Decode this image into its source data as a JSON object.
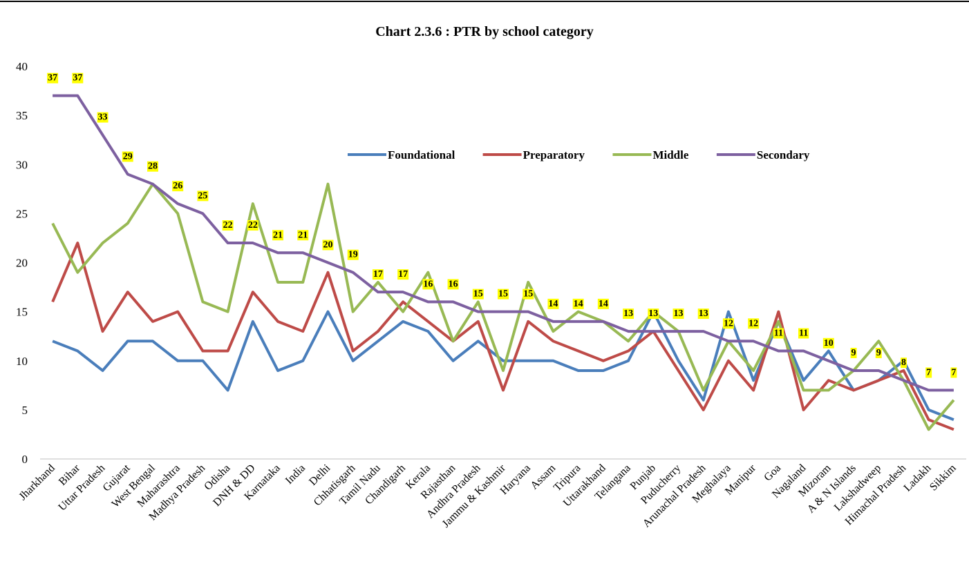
{
  "chart_data": {
    "type": "line",
    "title": "Chart 2.3.6 : PTR by school category",
    "categories": [
      "Jharkhand",
      "Bihar",
      "Uttar Pradesh",
      "Gujarat",
      "West Bengal",
      "Maharashtra",
      "Madhya Pradesh",
      "Odisha",
      "DNH & DD",
      "Karnataka",
      "India",
      "Delhi",
      "Chhatisgarh",
      "Tamil Nadu",
      "Chandigarh",
      "Kerala",
      "Rajasthan",
      "Andhra Pradesh",
      "Jammu & Kashmir",
      "Haryana",
      "Assam",
      "Tripura",
      "Uttarakhand",
      "Telangana",
      "Punjab",
      "Puducherry",
      "Arunachal Pradesh",
      "Meghalaya",
      "Manipur",
      "Goa",
      "Nagaland",
      "Mizoram",
      "A & N Islands",
      "Lakshadweep",
      "Himachal Pradesh",
      "Ladakh",
      "Sikkim"
    ],
    "series": [
      {
        "name": "Foundational",
        "color": "#4a7ebb",
        "values": [
          12,
          11,
          9,
          12,
          12,
          10,
          10,
          7,
          14,
          9,
          10,
          15,
          10,
          12,
          14,
          13,
          10,
          12,
          10,
          10,
          10,
          9,
          9,
          10,
          15,
          10,
          6,
          15,
          8,
          14,
          8,
          11,
          7,
          8,
          10,
          5,
          4
        ]
      },
      {
        "name": "Preparatory",
        "color": "#be4b48",
        "values": [
          16,
          22,
          13,
          17,
          14,
          15,
          11,
          11,
          17,
          14,
          13,
          19,
          11,
          13,
          16,
          14,
          12,
          14,
          7,
          14,
          12,
          11,
          10,
          11,
          13,
          9,
          5,
          10,
          7,
          15,
          5,
          8,
          7,
          8,
          9,
          4,
          3
        ]
      },
      {
        "name": "Middle",
        "color": "#98b954",
        "values": [
          24,
          19,
          22,
          24,
          28,
          25,
          16,
          15,
          26,
          18,
          18,
          28,
          15,
          18,
          15,
          19,
          12,
          16,
          9,
          18,
          13,
          15,
          14,
          12,
          15,
          13,
          7,
          12,
          9,
          14,
          7,
          7,
          9,
          12,
          8,
          3,
          6
        ]
      },
      {
        "name": "Secondary",
        "color": "#7d60a0",
        "values": [
          37,
          37,
          33,
          29,
          28,
          26,
          25,
          22,
          22,
          21,
          21,
          20,
          19,
          17,
          17,
          16,
          16,
          15,
          15,
          15,
          14,
          14,
          14,
          13,
          13,
          13,
          13,
          12,
          12,
          11,
          11,
          10,
          9,
          9,
          8,
          7,
          7
        ],
        "data_labels": true
      }
    ],
    "ylim": [
      0,
      40
    ],
    "yticks": [
      0,
      5,
      10,
      15,
      20,
      25,
      30,
      35,
      40
    ],
    "grid": false,
    "legend": "top"
  }
}
